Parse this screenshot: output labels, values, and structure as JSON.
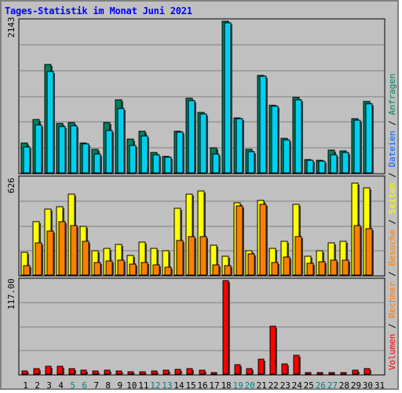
{
  "title": "Tages-Statistik im Monat Juni 2021",
  "colors": {
    "background": "#c0c0c0",
    "title": "#0000ff",
    "anfragen": "#008060",
    "dateien": "#00d0f0",
    "seiten": "#ffff00",
    "besuche": "#ff8000",
    "volumen": "#ff0000",
    "day_normal": "#000000",
    "day_weekend": "#008080"
  },
  "legend": {
    "volumen": "Volumen",
    "sep1": " / ",
    "rechner": "Rechner",
    "sep2": " / ",
    "besuche": "Besuche",
    "sep3": " / ",
    "seiten": "Seiten",
    "sep4": " / ",
    "dateien": "Dateien",
    "sep5": " / ",
    "anfragen": "Anfragen"
  },
  "chart_data": {
    "type": "bar",
    "categories": [
      "1",
      "2",
      "3",
      "4",
      "5",
      "6",
      "7",
      "8",
      "9",
      "10",
      "11",
      "12",
      "13",
      "14",
      "15",
      "16",
      "17",
      "18",
      "19",
      "20",
      "21",
      "22",
      "23",
      "24",
      "25",
      "26",
      "27",
      "28",
      "29",
      "30",
      "31"
    ],
    "weekend_days": [
      "5",
      "6",
      "12",
      "13",
      "19",
      "20",
      "26",
      "27"
    ],
    "panels": [
      {
        "name": "hits",
        "axis_max_label": "2143",
        "ylim": [
          0,
          2143
        ],
        "grid": true,
        "series": [
          {
            "name": "Anfragen",
            "color": "#008060",
            "values": [
              420,
              750,
              1530,
              700,
              710,
              425,
              330,
              710,
              1030,
              480,
              590,
              290,
              230,
              590,
              1050,
              860,
              350,
              2143,
              780,
              330,
              1380,
              960,
              490,
              1070,
              190,
              180,
              320,
              310,
              770,
              1010,
              null
            ]
          },
          {
            "name": "Dateien",
            "color": "#00d0f0",
            "values": [
              370,
              680,
              1430,
              650,
              670,
              410,
              270,
              600,
              910,
              390,
              520,
              250,
              220,
              580,
              1020,
              830,
              270,
              2120,
              770,
              300,
              1370,
              940,
              470,
              1030,
              180,
              170,
              260,
              290,
              740,
              980,
              null
            ]
          }
        ]
      },
      {
        "name": "visits",
        "axis_max_label": "626",
        "ylim": [
          0,
          626
        ],
        "grid": true,
        "series": [
          {
            "name": "Seiten",
            "color": "#ffff00",
            "values": [
              150,
              344,
              430,
              441,
              524,
              314,
              157,
              172,
              200,
              129,
              213,
              175,
              156,
              435,
              526,
              543,
              192,
              123,
              468,
              160,
              484,
              174,
              219,
              458,
              122,
              160,
              210,
              219,
              595,
              565,
              null
            ]
          },
          {
            "name": "Besuche",
            "color": "#ff8000",
            "values": [
              60,
              211,
              286,
              345,
              320,
              220,
              81,
              92,
              96,
              71,
              81,
              66,
              50,
              224,
              247,
              248,
              64,
              60,
              448,
              139,
              457,
              80,
              117,
              247,
              78,
              88,
              99,
              96,
              323,
              298,
              null
            ]
          }
        ]
      },
      {
        "name": "volume",
        "axis_max_label": "117.00",
        "ylim": [
          0,
          117
        ],
        "grid": true,
        "series": [
          {
            "name": "Volumen",
            "color": "#ff0000",
            "values": [
              3.5,
              6.5,
              10,
              9.5,
              7,
              4.5,
              3.5,
              5,
              3.5,
              3,
              2.5,
              4,
              4.5,
              6,
              7,
              5,
              2,
              117,
              12,
              6.5,
              19,
              60,
              12.5,
              24,
              1.5,
              1.5,
              1.8,
              2,
              5,
              6.5,
              null
            ]
          }
        ]
      }
    ]
  }
}
